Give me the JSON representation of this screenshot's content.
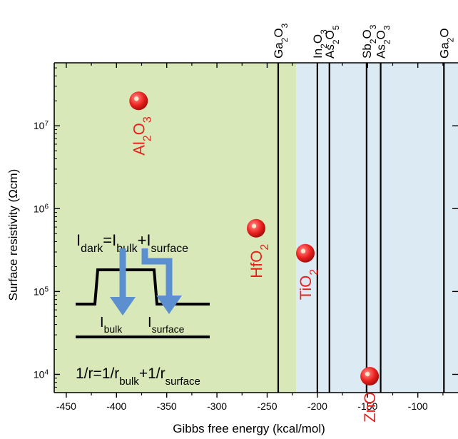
{
  "chart_data": {
    "type": "scatter",
    "xlabel": "Gibbs free energy (kcal/mol)",
    "ylabel": "Surface resistivity (Ωcm)",
    "xlim": [
      -462,
      -60
    ],
    "ylim_log10": [
      3.78,
      7.76
    ],
    "x_ticks": [
      -450,
      -400,
      -350,
      -300,
      -250,
      -200,
      -150,
      -100
    ],
    "y_ticks": [
      {
        "exp": 4,
        "base": "10",
        "sup": "4"
      },
      {
        "exp": 5,
        "base": "10",
        "sup": "5"
      },
      {
        "exp": 6,
        "base": "10",
        "sup": "6"
      },
      {
        "exp": 7,
        "base": "10",
        "sup": "7"
      }
    ],
    "regions": [
      {
        "x0": -462,
        "x1": -221,
        "color": "#d8e8b8"
      },
      {
        "x0": -221,
        "x1": -60,
        "color": "#dcebf3"
      }
    ],
    "vlines": [
      {
        "x": -239,
        "parts": [
          {
            "t": "Ga",
            "s": ""
          },
          {
            "t": "2",
            "s": "sub"
          },
          {
            "t": "O",
            "s": ""
          },
          {
            "t": "3",
            "s": "sub"
          }
        ]
      },
      {
        "x": -200,
        "parts": [
          {
            "t": "In",
            "s": ""
          },
          {
            "t": "2",
            "s": "sub"
          },
          {
            "t": "O",
            "s": ""
          },
          {
            "t": "3",
            "s": "sub"
          }
        ]
      },
      {
        "x": -188,
        "parts": [
          {
            "t": "As",
            "s": ""
          },
          {
            "t": "2",
            "s": "sub"
          },
          {
            "t": "O",
            "s": ""
          },
          {
            "t": "5",
            "s": "sub"
          }
        ]
      },
      {
        "x": -151,
        "parts": [
          {
            "t": "Sb",
            "s": ""
          },
          {
            "t": "2",
            "s": "sub"
          },
          {
            "t": "O",
            "s": ""
          },
          {
            "t": "3",
            "s": "sub"
          }
        ]
      },
      {
        "x": -137,
        "parts": [
          {
            "t": "As",
            "s": ""
          },
          {
            "t": "2",
            "s": "sub"
          },
          {
            "t": "O",
            "s": ""
          },
          {
            "t": "3",
            "s": "sub"
          }
        ]
      },
      {
        "x": -74,
        "parts": [
          {
            "t": "Ga",
            "s": ""
          },
          {
            "t": "2",
            "s": "sub"
          },
          {
            "t": "O",
            "s": ""
          }
        ]
      }
    ],
    "points": [
      {
        "x": -378,
        "y": 20000000.0,
        "parts": [
          {
            "t": "Al",
            "s": ""
          },
          {
            "t": "2",
            "s": "sub"
          },
          {
            "t": "O",
            "s": ""
          },
          {
            "t": "3",
            "s": "sub"
          }
        ]
      },
      {
        "x": -261,
        "y": 580000.0,
        "parts": [
          {
            "t": "HfO",
            "s": ""
          },
          {
            "t": "2",
            "s": "sub"
          }
        ]
      },
      {
        "x": -212,
        "y": 290000.0,
        "parts": [
          {
            "t": "TiO",
            "s": ""
          },
          {
            "t": "2",
            "s": "sub"
          }
        ]
      },
      {
        "x": -148,
        "y": 9500.0,
        "parts": [
          {
            "t": "ZnO",
            "s": ""
          }
        ]
      }
    ],
    "point_color": "#e8201c",
    "label_color": "#e8201c",
    "arrow_color": "#5b8fcf",
    "inset": {
      "equation1": [
        {
          "t": "I",
          "s": ""
        },
        {
          "t": "dark",
          "s": "sub"
        },
        {
          "t": "=I",
          "s": ""
        },
        {
          "t": "bulk",
          "s": "sub"
        },
        {
          "t": "+I",
          "s": ""
        },
        {
          "t": "surface",
          "s": "sub"
        }
      ],
      "label_bulk": [
        {
          "t": "I",
          "s": ""
        },
        {
          "t": "bulk",
          "s": "sub"
        }
      ],
      "label_surface": [
        {
          "t": "I",
          "s": ""
        },
        {
          "t": "surface",
          "s": "sub"
        }
      ],
      "equation2": [
        {
          "t": "1/r=1/r",
          "s": ""
        },
        {
          "t": "bulk",
          "s": "sub"
        },
        {
          "t": "+1/r",
          "s": ""
        },
        {
          "t": "surface",
          "s": "sub"
        }
      ]
    }
  }
}
